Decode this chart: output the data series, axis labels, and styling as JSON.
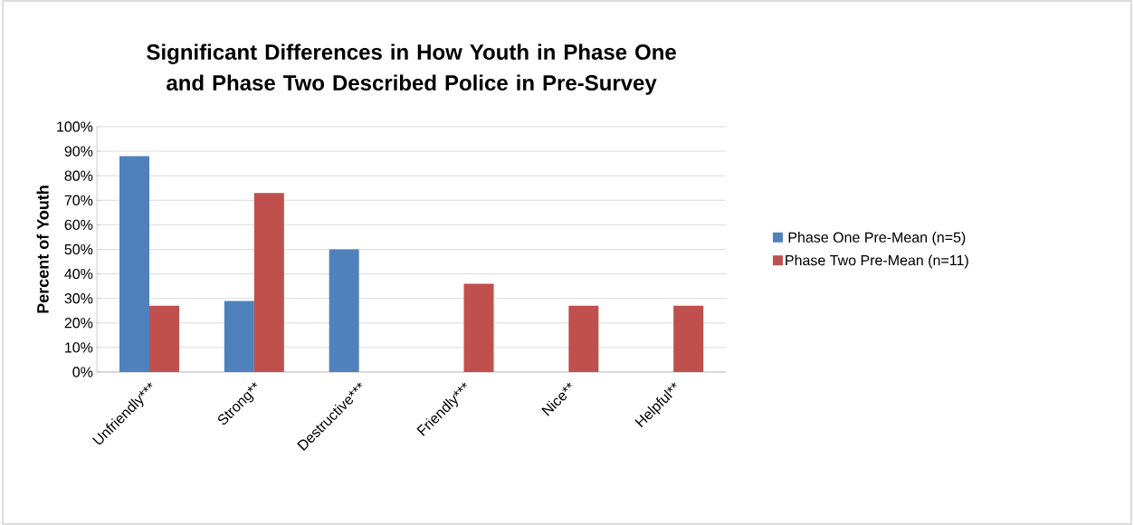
{
  "chart_data": {
    "type": "bar",
    "title": "Significant Differences in How Youth in Phase One and Phase Two Described Police in Pre-Survey",
    "ylabel": "Percent of Youth",
    "categories": [
      "Unfriendly***",
      "Strong**",
      "Destructive***",
      "Friendly***",
      "Nice**",
      "Helpful**"
    ],
    "series": [
      {
        "name": "Phase One Pre-Mean (n=5)",
        "color": "#4f81bd",
        "values": [
          88,
          29,
          50,
          0,
          0,
          0
        ]
      },
      {
        "name": "Phase Two Pre-Mean (n=11)",
        "color": "#c0504d",
        "values": [
          27,
          73,
          0,
          36,
          27,
          27
        ]
      }
    ],
    "ylim": [
      0,
      100
    ],
    "yticks": [
      {
        "value": 0,
        "label": "0%"
      },
      {
        "value": 10,
        "label": "10%"
      },
      {
        "value": 20,
        "label": "20%"
      },
      {
        "value": 30,
        "label": "30%"
      },
      {
        "value": 40,
        "label": "40%"
      },
      {
        "value": 50,
        "label": "50%"
      },
      {
        "value": 60,
        "label": "60%"
      },
      {
        "value": 70,
        "label": "70%"
      },
      {
        "value": 80,
        "label": "80%"
      },
      {
        "value": 90,
        "label": "90%"
      },
      {
        "value": 100,
        "label": "100%"
      }
    ],
    "grid": "y",
    "legend": "right"
  }
}
